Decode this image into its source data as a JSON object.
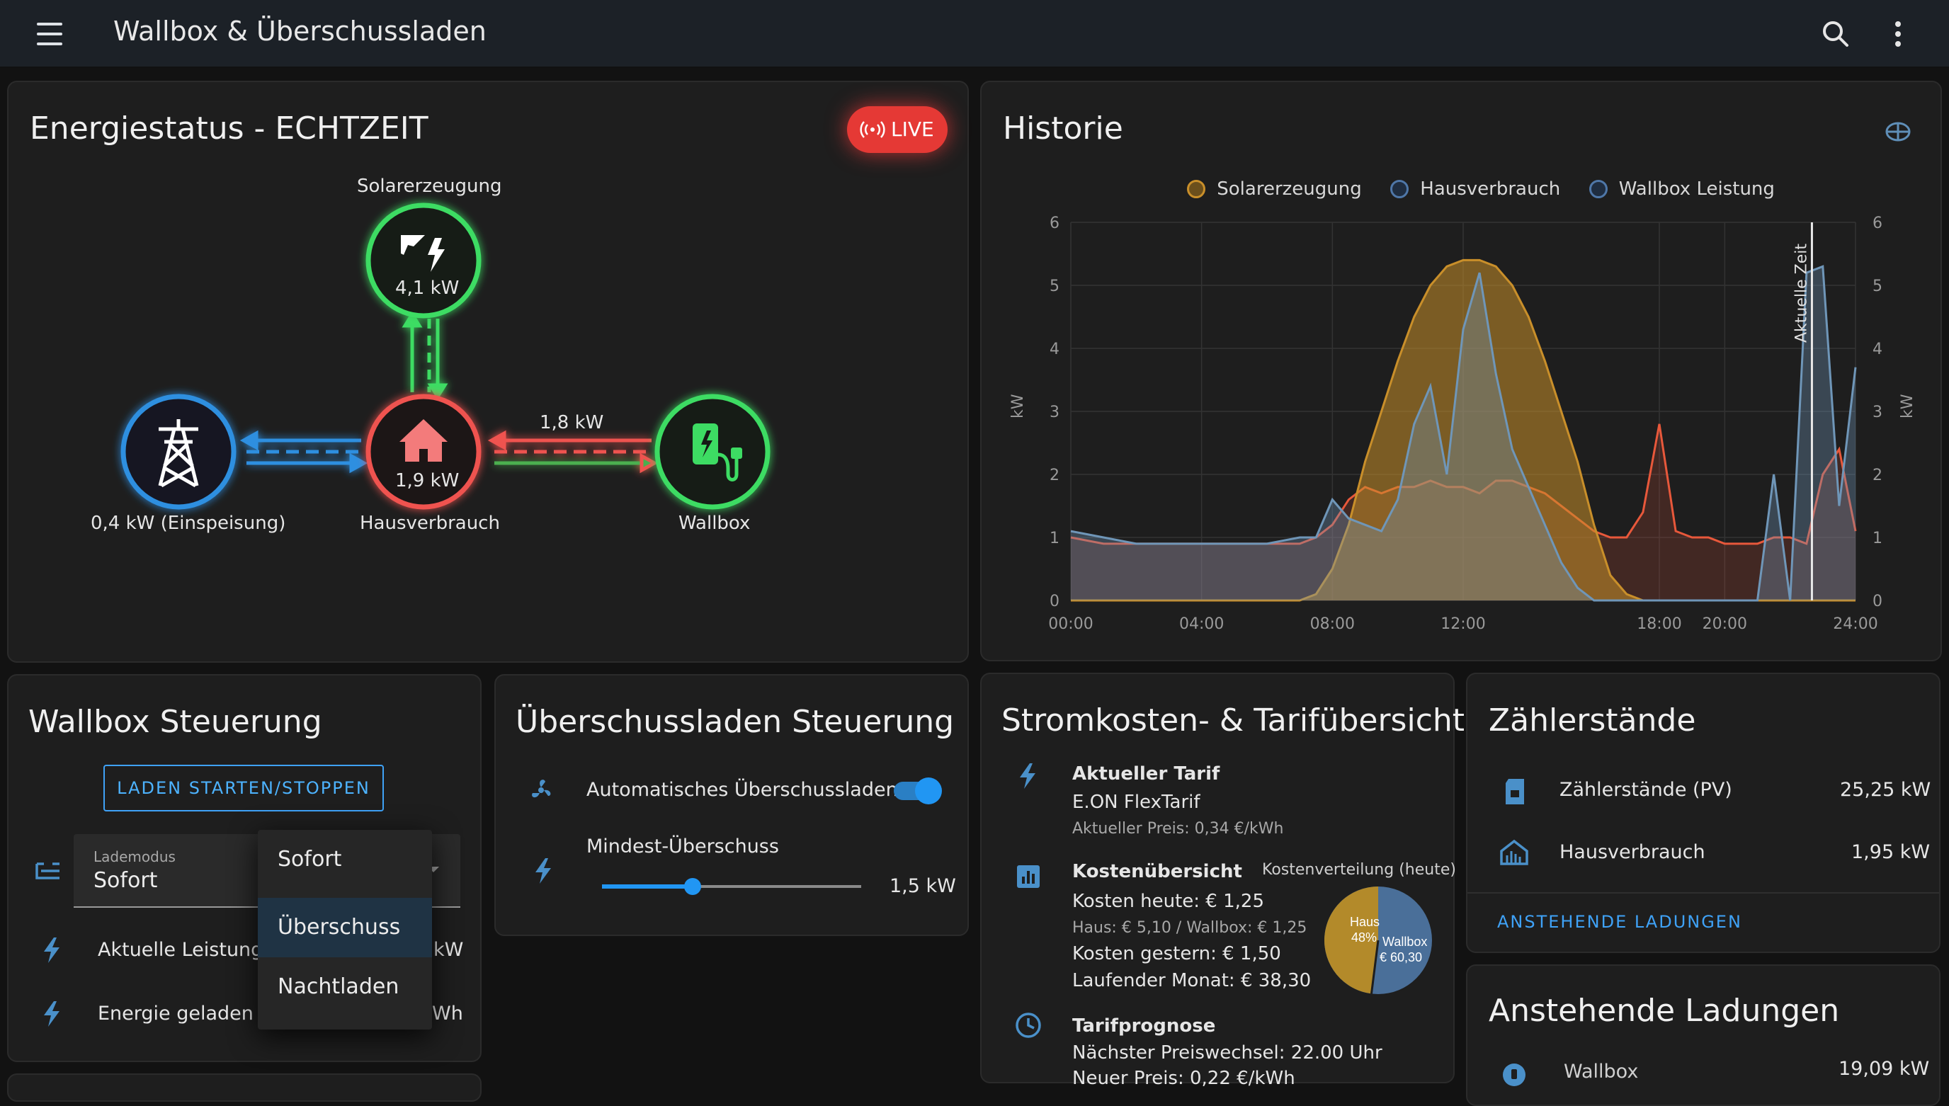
{
  "app": {
    "title": "Wallbox & Überschussladen"
  },
  "energy": {
    "title": "Energiestatus - ECHTZEIT",
    "live": "LIVE",
    "solar_label": "Solarerzeugung",
    "solar_value": "4,1 kW",
    "grid_label": "0,4 kW (Einspeisung)",
    "house_value": "1,9 kW",
    "house_label": "Hausverbrauch",
    "wallbox_flow": "1,8 kW",
    "wallbox_label": "Wallbox",
    "colors": {
      "solar": "#3ddc63",
      "grid": "#2f8fe0",
      "house": "#ef5350",
      "wallbox": "#3ddc63"
    }
  },
  "history": {
    "title": "Historie",
    "legend": [
      "Solarerzeugung",
      "Hausverbrauch",
      "Wallbox Leistung"
    ],
    "y_ticks": [
      "0",
      "1",
      "2",
      "3",
      "4",
      "5",
      "6"
    ],
    "y_unit": "kW",
    "x_ticks": [
      "00:00",
      "04:00",
      "08:00",
      "12:00",
      "18:00",
      "20:00",
      "24:00"
    ],
    "now_label": "Aktuelle Zeit"
  },
  "chart_data": {
    "type": "area",
    "x": [
      "00:00",
      "01:00",
      "02:00",
      "03:00",
      "04:00",
      "05:00",
      "06:00",
      "07:00",
      "07:30",
      "08:00",
      "08:30",
      "09:00",
      "09:30",
      "10:00",
      "10:30",
      "11:00",
      "11:30",
      "12:00",
      "12:30",
      "13:00",
      "13:30",
      "14:00",
      "14:30",
      "15:00",
      "15:30",
      "16:00",
      "16:30",
      "17:00",
      "17:30",
      "18:00",
      "18:30",
      "19:00",
      "19:30",
      "20:00",
      "20:30",
      "21:00",
      "21:30",
      "22:00",
      "22:30",
      "23:00",
      "23:30",
      "24:00"
    ],
    "series": [
      {
        "name": "Solarerzeugung",
        "color": "#c98f2a",
        "values": [
          0,
          0,
          0,
          0,
          0,
          0,
          0,
          0,
          0.1,
          0.5,
          1.2,
          2.2,
          3.0,
          3.8,
          4.5,
          5.0,
          5.3,
          5.4,
          5.4,
          5.3,
          5.0,
          4.5,
          3.8,
          3.0,
          2.2,
          1.2,
          0.4,
          0.1,
          0,
          0,
          0,
          0,
          0,
          0,
          0,
          0,
          0,
          0,
          0,
          0,
          0,
          0
        ]
      },
      {
        "name": "Hausverbrauch",
        "color": "#e8583b",
        "values": [
          1.0,
          0.9,
          0.9,
          0.9,
          0.9,
          0.9,
          0.9,
          0.9,
          1.0,
          1.2,
          1.6,
          1.8,
          1.7,
          1.8,
          1.8,
          1.9,
          1.8,
          1.8,
          1.7,
          1.9,
          1.9,
          1.8,
          1.7,
          1.5,
          1.3,
          1.1,
          1.0,
          1.0,
          1.4,
          2.8,
          1.1,
          1.0,
          1.0,
          0.9,
          0.9,
          0.9,
          1.0,
          1.0,
          0.9,
          2.0,
          2.4,
          1.1
        ]
      },
      {
        "name": "Wallbox Leistung",
        "color": "#6f96b8",
        "values": [
          1.1,
          1.0,
          0.9,
          0.9,
          0.9,
          0.9,
          0.9,
          1.0,
          1.0,
          1.6,
          1.3,
          1.2,
          1.1,
          1.6,
          2.8,
          3.4,
          2.0,
          4.3,
          5.2,
          3.6,
          2.4,
          1.8,
          1.2,
          0.6,
          0.2,
          0.0,
          0.0,
          0.0,
          0.0,
          0.0,
          0.0,
          0.0,
          0.0,
          0.0,
          0.0,
          0.0,
          2.0,
          0.0,
          5.2,
          5.3,
          1.5,
          3.7
        ]
      }
    ],
    "xlabel": "",
    "ylabel": "kW",
    "ylim": [
      0,
      6
    ],
    "now_x": "22:40",
    "grid": true,
    "legend_position": "top"
  },
  "wallbox": {
    "title": "Wallbox Steuerung",
    "start_stop": "LADEN STARTEN/STOPPEN",
    "mode_label": "Lademodus",
    "mode_value": "Sofort",
    "options": [
      "Sofort",
      "Überschuss",
      "Nachtladen"
    ],
    "power_label": "Aktuelle Leistung",
    "power_unit": "kW",
    "energy_label": "Energie geladen",
    "energy_unit": "Wh"
  },
  "surplus": {
    "title": "Überschussladen Steuerung",
    "auto_label": "Automatisches Überschussladen",
    "auto_on": true,
    "min_label": "Mindest-Überschuss",
    "min_value": "1,5 kW",
    "slider_fraction": 0.35
  },
  "costs": {
    "title": "Stromkosten- & Tarifübersicht",
    "tariff_title": "Aktueller Tarif",
    "tariff_name": "E.ON FlexTarif",
    "tariff_price": "Aktueller Preis: 0,34 €/kWh",
    "overview_title": "Kostenübersicht",
    "distribution_label": "Kostenverteilung (heute)",
    "today": "Kosten heute: € 1,25",
    "split": "Haus: € 5,10 / Wallbox: € 1,25",
    "yesterday": "Kosten gestern: € 1,50",
    "month": "Laufender Monat: € 38,30",
    "pie_house_label": "Haus",
    "pie_house_pct": "48%",
    "pie_house_fraction": 0.48,
    "pie_wallbox_label": "Wallbox",
    "pie_wallbox_value": "€ 60,30",
    "forecast_title": "Tarifprognose",
    "forecast_next": "Nächster Preiswechsel: 22.00 Uhr",
    "forecast_price": "Neuer Preis: 0,22 €/kWh"
  },
  "meters": {
    "title": "Zählerstände",
    "rows": [
      {
        "label": "Zählerstände (PV)",
        "value": "25,25 kW"
      },
      {
        "label": "Hausverbrauch",
        "value": "1,95 kW"
      }
    ],
    "link": "ANSTEHENDE LADUNGEN"
  },
  "pending": {
    "title": "Anstehende Ladungen",
    "row_label": "Wallbox",
    "row_value": "19,09 kW"
  }
}
